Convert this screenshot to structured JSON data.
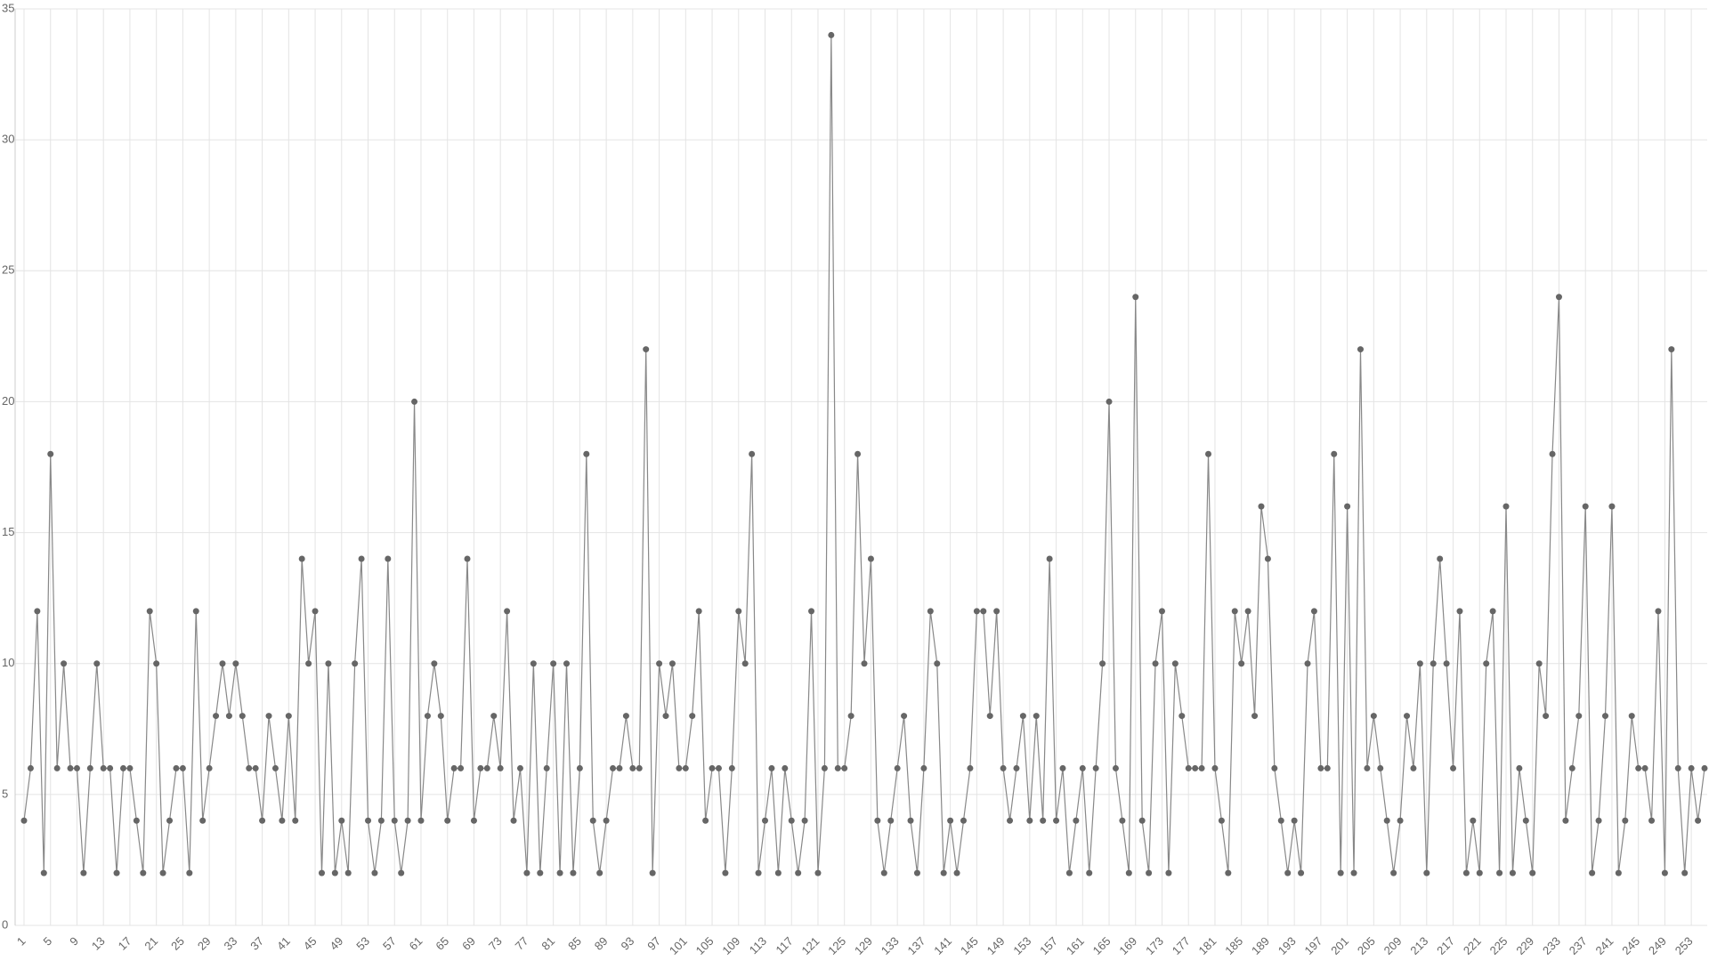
{
  "chart_data": {
    "type": "line",
    "categories": [
      "1",
      null,
      null,
      null,
      "5",
      null,
      null,
      null,
      "9",
      null,
      null,
      null,
      "13",
      null,
      null,
      null,
      "17",
      null,
      null,
      null,
      "21",
      null,
      null,
      null,
      "25",
      null,
      null,
      null,
      "29",
      null,
      null,
      null,
      "33",
      null,
      null,
      null,
      "37",
      null,
      null,
      null,
      "41",
      null,
      null,
      null,
      "45",
      null,
      null,
      null,
      "49",
      null,
      null,
      null,
      "53",
      null,
      null,
      null,
      "57",
      null,
      null,
      null,
      "61",
      null,
      null,
      null,
      "65",
      null,
      null,
      null,
      "69",
      null,
      null,
      null,
      "73",
      null,
      null,
      null,
      "77",
      null,
      null,
      null,
      "81",
      null,
      null,
      null,
      "85",
      null,
      null,
      null,
      "89",
      null,
      null,
      null,
      "93",
      null,
      null,
      null,
      "97",
      null,
      null,
      null,
      "101",
      null,
      null,
      null,
      "105",
      null,
      null,
      null,
      "109",
      null,
      null,
      null,
      "113",
      null,
      null,
      null,
      "117",
      null,
      null,
      null,
      "121",
      null,
      null,
      null,
      "125",
      null,
      null,
      null,
      "129",
      null,
      null,
      null,
      "133",
      null,
      null,
      null,
      "137",
      null,
      null,
      null,
      "141",
      null,
      null,
      null,
      "145",
      null,
      null,
      null,
      "149",
      null,
      null,
      null,
      "153",
      null,
      null,
      null,
      "157",
      null,
      null,
      null,
      "161",
      null,
      null,
      null,
      "165",
      null,
      null,
      null,
      "169",
      null,
      null,
      null,
      "173",
      null,
      null,
      null,
      "177",
      null,
      null,
      null,
      "181",
      null,
      null,
      null,
      "185",
      null,
      null,
      null,
      "189",
      null,
      null,
      null,
      "193",
      null,
      null,
      null,
      "197",
      null,
      null,
      null,
      "201",
      null,
      null,
      null,
      "205",
      null,
      null,
      null,
      "209",
      null,
      null,
      null,
      "213",
      null,
      null,
      null,
      "217",
      null,
      null,
      null,
      "221",
      null,
      null,
      null,
      "225",
      null,
      null,
      null,
      "229",
      null,
      null,
      null,
      "233",
      null,
      null,
      null,
      "237",
      null,
      null,
      null,
      "241",
      null,
      null,
      null,
      "245",
      null,
      null,
      null,
      "249",
      null,
      null,
      null,
      "253",
      null,
      null
    ],
    "values": [
      4,
      6,
      12,
      2,
      18,
      6,
      10,
      6,
      6,
      2,
      6,
      10,
      6,
      6,
      2,
      6,
      6,
      4,
      2,
      12,
      10,
      2,
      4,
      6,
      6,
      2,
      12,
      4,
      6,
      8,
      10,
      8,
      10,
      8,
      6,
      6,
      4,
      8,
      6,
      4,
      8,
      4,
      14,
      10,
      12,
      2,
      10,
      2,
      4,
      2,
      10,
      14,
      4,
      2,
      4,
      14,
      4,
      2,
      4,
      20,
      4,
      8,
      10,
      8,
      4,
      6,
      6,
      14,
      4,
      6,
      6,
      8,
      6,
      12,
      4,
      6,
      2,
      10,
      2,
      6,
      10,
      2,
      10,
      2,
      6,
      18,
      4,
      2,
      4,
      6,
      6,
      8,
      6,
      6,
      22,
      2,
      10,
      8,
      10,
      6,
      6,
      8,
      12,
      4,
      6,
      6,
      2,
      6,
      12,
      10,
      18,
      2,
      4,
      6,
      2,
      6,
      4,
      2,
      4,
      12,
      2,
      6,
      34,
      6,
      6,
      8,
      18,
      10,
      14,
      4,
      2,
      4,
      6,
      8,
      4,
      2,
      6,
      12,
      10,
      2,
      4,
      2,
      4,
      6,
      12,
      12,
      8,
      12,
      6,
      4,
      6,
      8,
      4,
      8,
      4,
      14,
      4,
      6,
      2,
      4,
      6,
      2,
      6,
      10,
      20,
      6,
      4,
      2,
      24,
      4,
      2,
      10,
      12,
      2,
      10,
      8,
      6,
      6,
      6,
      18,
      6,
      4,
      2,
      12,
      10,
      12,
      8,
      16,
      14,
      6,
      4,
      2,
      4,
      2,
      10,
      12,
      6,
      6,
      18,
      2,
      16,
      2,
      22,
      6,
      8,
      6,
      4,
      2,
      4,
      8,
      6,
      10,
      2,
      10,
      14,
      10,
      6,
      12,
      2,
      4,
      2,
      10,
      12,
      2,
      16,
      2,
      6,
      4,
      2,
      10,
      8,
      18,
      24,
      4,
      6,
      8,
      16,
      2,
      4,
      8,
      16,
      2,
      4,
      8,
      6,
      6,
      4,
      12,
      2,
      22,
      6,
      2,
      6,
      4,
      6
    ],
    "color": "#666666",
    "ylim": [
      0,
      35
    ],
    "yticks": [
      0,
      5,
      10,
      15,
      20,
      25,
      30,
      35
    ],
    "grid": true
  }
}
